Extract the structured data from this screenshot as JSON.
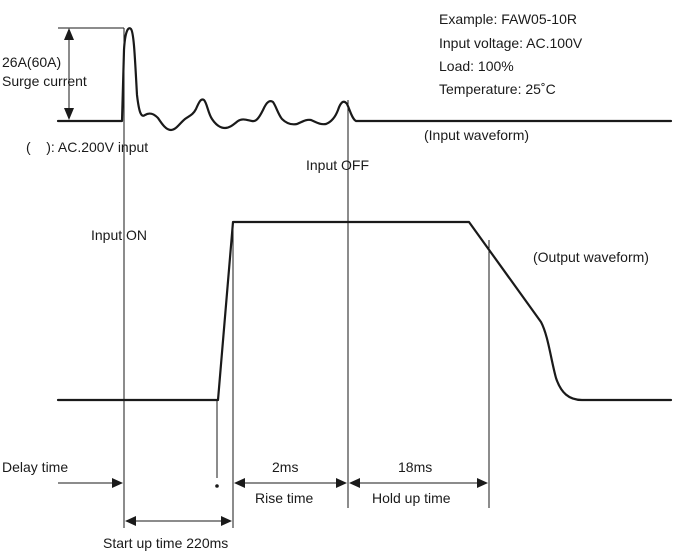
{
  "example": {
    "model": "Example: FAW05-10R",
    "input_voltage": "Input voltage: AC.100V",
    "load": "Load: 100%",
    "temperature": "Temperature: 25˚C"
  },
  "surge": {
    "value": "26A(60A)",
    "label": "Surge current",
    "note": "(    ): AC.200V input"
  },
  "waveforms": {
    "input": "(Input waveform)",
    "output": "(Output waveform)"
  },
  "events": {
    "input_on": "Input ON",
    "input_off": "Input OFF"
  },
  "timing": {
    "delay": "Delay time",
    "rise_value": "2ms",
    "rise_label": "Rise time",
    "hold_value": "18ms",
    "hold_label": "Hold up time",
    "startup": "Start up time 220ms"
  }
}
